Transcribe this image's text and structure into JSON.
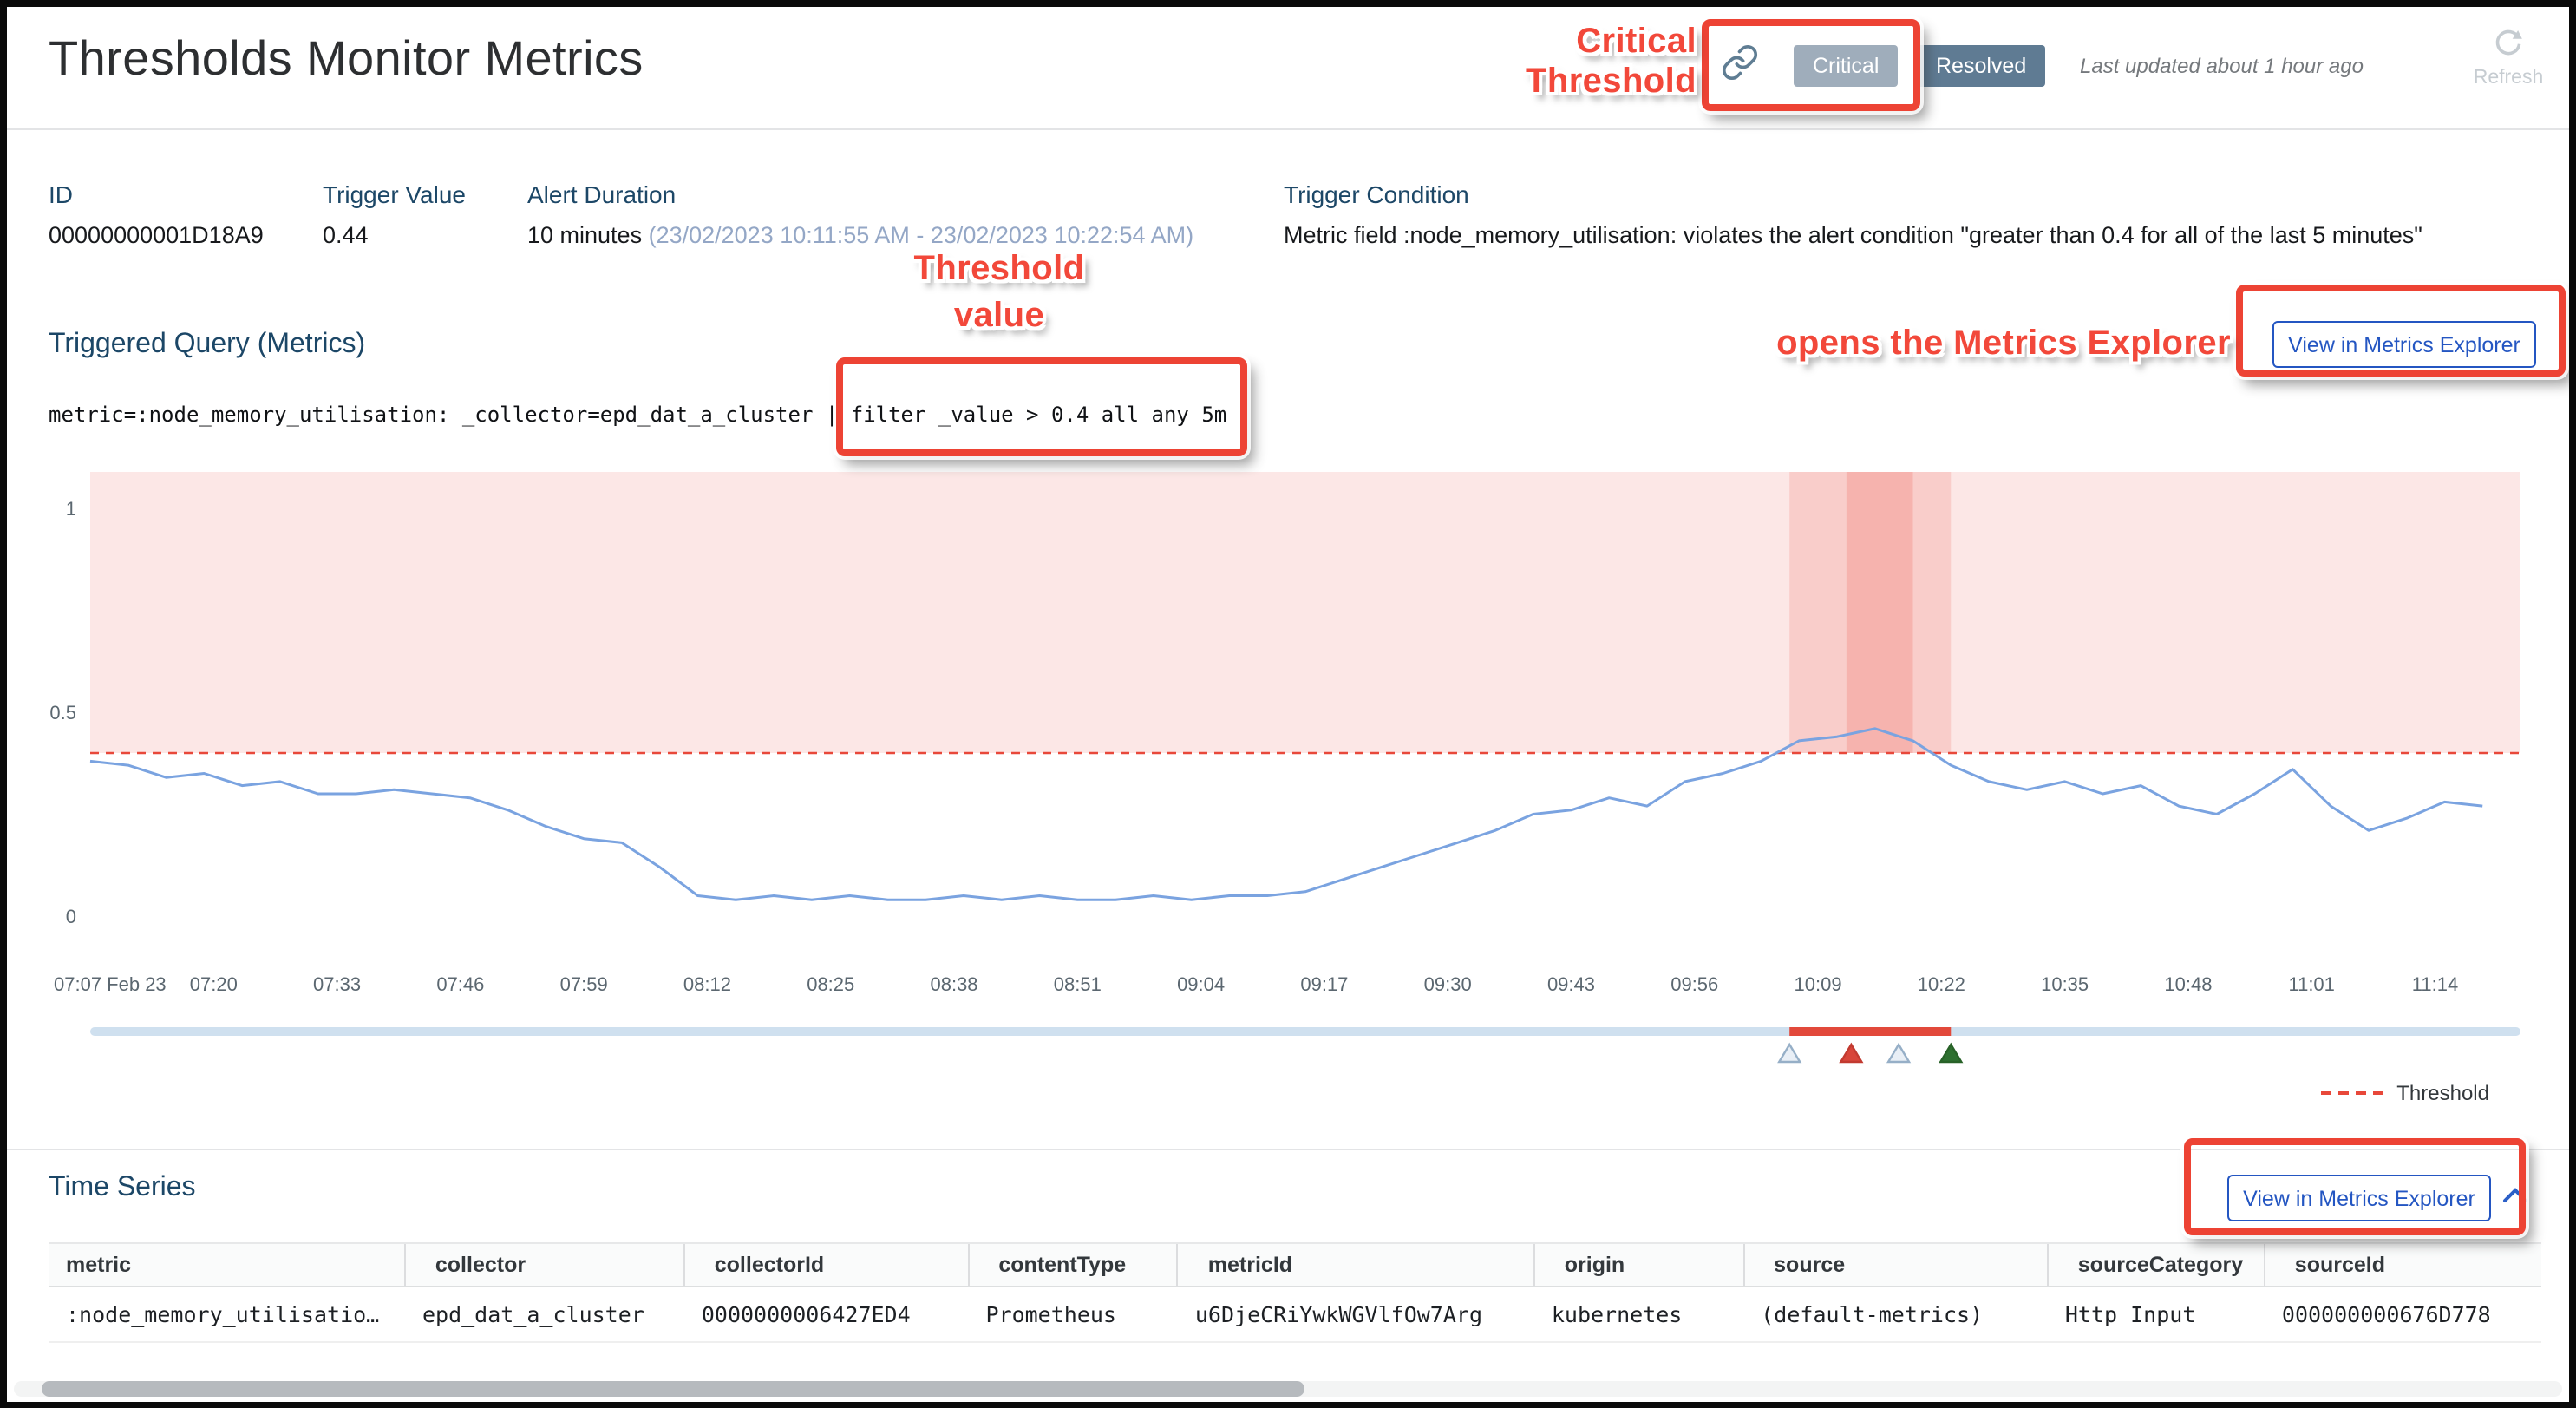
{
  "header": {
    "title": "Thresholds Monitor Metrics",
    "badges": {
      "critical": "Critical",
      "resolved": "Resolved"
    },
    "last_updated": "Last updated about 1 hour ago",
    "refresh_label": "Refresh"
  },
  "annotations": {
    "critical_threshold": "Critical Threshold",
    "threshold_value_line1": "Threshold",
    "threshold_value_line2": "value",
    "opens_metrics_explorer": "opens the Metrics Explorer"
  },
  "summary": {
    "id_label": "ID",
    "id_value": "00000000001D18A9",
    "trigger_value_label": "Trigger Value",
    "trigger_value": "0.44",
    "alert_duration_label": "Alert Duration",
    "alert_duration_value": "10 minutes ",
    "alert_duration_range": "(23/02/2023 10:11:55 AM - 23/02/2023 10:22:54 AM)",
    "trigger_condition_label": "Trigger Condition",
    "trigger_condition_value": "Metric field :node_memory_utilisation: violates the alert condition \"greater than 0.4 for all of the last 5 minutes\""
  },
  "triggered_query": {
    "heading": "Triggered Query (Metrics)",
    "query_prefix": "metric=:node_memory_utilisation: _collector=epd_dat_a_cluster | ",
    "query_highlighted": "filter _value > 0.4 all any 5m",
    "view_button": "View in Metrics Explorer"
  },
  "chart_data": {
    "type": "line",
    "title": "",
    "xlabel": "",
    "ylabel": "",
    "ylim": [
      0,
      1.05
    ],
    "grid": false,
    "legend_position": "bottom-right",
    "x_tick_labels": [
      "07:07 Feb 23",
      "07:20",
      "07:33",
      "07:46",
      "07:59",
      "08:12",
      "08:25",
      "08:38",
      "08:51",
      "09:04",
      "09:17",
      "09:30",
      "09:43",
      "09:56",
      "10:09",
      "10:22",
      "10:35",
      "10:48",
      "11:01",
      "11:14"
    ],
    "tick_interval_minutes": 13,
    "x_total_minutes": 256,
    "y_ticks": [
      {
        "v": 0,
        "label": "0"
      },
      {
        "v": 0.5,
        "label": "0.5"
      },
      {
        "v": 1,
        "label": "1"
      }
    ],
    "series": [
      {
        "name": ":node_memory_utilisation:",
        "color": "#7aa3e0",
        "point_interval_minutes": 4,
        "values": [
          0.38,
          0.37,
          0.34,
          0.35,
          0.32,
          0.33,
          0.3,
          0.3,
          0.31,
          0.3,
          0.29,
          0.26,
          0.22,
          0.19,
          0.18,
          0.12,
          0.05,
          0.04,
          0.05,
          0.04,
          0.05,
          0.04,
          0.04,
          0.05,
          0.04,
          0.05,
          0.04,
          0.04,
          0.05,
          0.04,
          0.05,
          0.05,
          0.06,
          0.09,
          0.12,
          0.15,
          0.18,
          0.21,
          0.25,
          0.26,
          0.29,
          0.27,
          0.33,
          0.35,
          0.38,
          0.43,
          0.44,
          0.46,
          0.43,
          0.37,
          0.33,
          0.31,
          0.33,
          0.3,
          0.32,
          0.27,
          0.25,
          0.3,
          0.36,
          0.27,
          0.21,
          0.24,
          0.28,
          0.27
        ]
      }
    ],
    "threshold": {
      "value": 0.4,
      "color": "#e8483a",
      "label": "Threshold"
    },
    "alert_band_minutes": [
      179,
      196
    ],
    "alert_band_core_minutes": [
      185,
      192
    ],
    "event_markers": [
      {
        "minute": 179,
        "type": "outline-blue"
      },
      {
        "minute": 185.5,
        "type": "filled-red"
      },
      {
        "minute": 190.5,
        "type": "outline-blue"
      },
      {
        "minute": 196,
        "type": "filled-green"
      }
    ]
  },
  "time_series_section": {
    "heading": "Time Series",
    "view_button": "View in Metrics Explorer",
    "table": {
      "columns": [
        "metric",
        "_collector",
        "_collectorId",
        "_contentType",
        "_metricId",
        "_origin",
        "_source",
        "_sourceCategory",
        "_sourceId"
      ],
      "rows": [
        [
          ":node_memory_utilisatio…",
          "epd_dat_a_cluster",
          "0000000006427ED4",
          "Prometheus",
          "u6DjeCRiYwkWGVlfOw7Arg",
          "kubernetes",
          "(default-metrics)",
          "Http Input",
          "000000000676D778"
        ]
      ]
    }
  },
  "colors": {
    "accent_blue": "#2456c2",
    "annotation_red": "#ed4334",
    "threshold_red": "#e8483a",
    "series_blue": "#7aa3e0",
    "badge_critical_bg": "#9fadbb",
    "badge_resolved_bg": "#5f7b93",
    "heading_blue": "#1c4767"
  }
}
